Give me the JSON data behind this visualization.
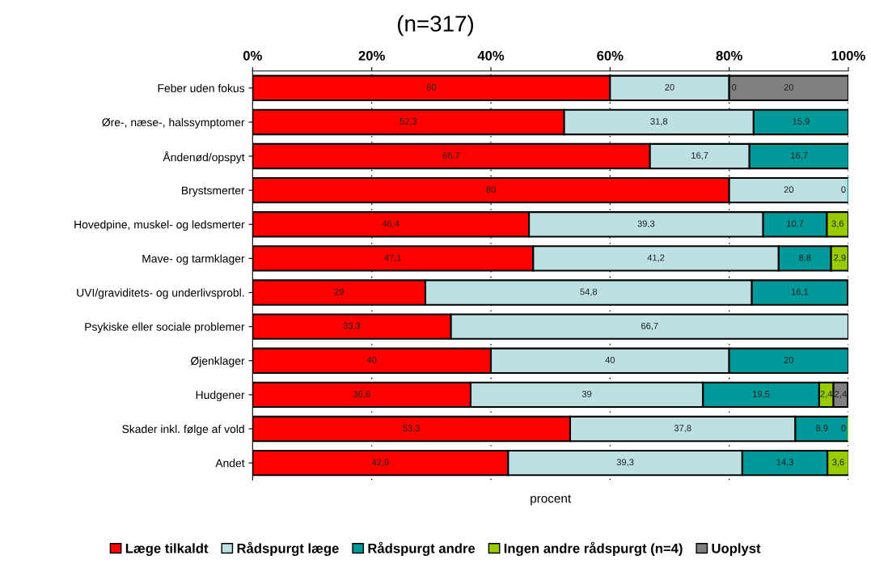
{
  "chart_data": {
    "type": "bar",
    "orientation": "horizontal",
    "stacked": true,
    "title": "(n=317)",
    "xlabel": "procent",
    "categories": [
      "Feber uden fokus",
      "Øre-, næse-, halssymptomer",
      "Åndenød/opspyt",
      "Brystsmerter",
      "Hovedpine, muskel- og ledsmerter",
      "Mave- og tarmklager",
      "UVI/graviditets- og underlivsprobl.",
      "Psykiske eller sociale problemer",
      "Øjenklager",
      "Hudgener",
      "Skader inkl. følge af vold",
      "Andet"
    ],
    "series": [
      {
        "name": "Læge tilkaldt",
        "color": "#ff0000",
        "values": [
          60,
          52.3,
          66.7,
          80,
          46.4,
          47.1,
          29,
          33.3,
          40,
          36.6,
          53.3,
          42.9
        ],
        "value_labels": [
          "60",
          "52,3",
          "66,7",
          "80",
          "46,4",
          "47,1",
          "29",
          "33,3",
          "40",
          "36,6",
          "53,3",
          "42,9"
        ]
      },
      {
        "name": "Rådspurgt læge",
        "color": "#bde0e3",
        "values": [
          20,
          31.8,
          16.7,
          20,
          39.3,
          41.2,
          54.8,
          66.7,
          40,
          39,
          37.8,
          39.3
        ],
        "value_labels": [
          "20",
          "31,8",
          "16,7",
          "20",
          "39,3",
          "41,2",
          "54,8",
          "66,7",
          "40",
          "39",
          "37,8",
          "39,3"
        ]
      },
      {
        "name": "Rådspurgt andre",
        "color": "#009999",
        "values": [
          0,
          15.9,
          16.7,
          0,
          10.7,
          8.8,
          16.1,
          null,
          20,
          19.5,
          8.9,
          14.3
        ],
        "value_labels": [
          "0",
          "15,9",
          "16,7",
          "0",
          "10,7",
          "8,8",
          "16,1",
          null,
          "20",
          "19,5",
          "8,9",
          "14,3"
        ]
      },
      {
        "name": "Ingen andre rådspurgt (n=4)",
        "color": "#99cc00",
        "values": [
          null,
          null,
          null,
          null,
          3.6,
          2.9,
          null,
          null,
          null,
          2.4,
          0,
          3.6
        ],
        "value_labels": [
          null,
          null,
          null,
          null,
          "3,6",
          "2,9",
          null,
          null,
          null,
          "2,4",
          "0",
          "3,6"
        ]
      },
      {
        "name": "Uoplyst",
        "color": "#808080",
        "values": [
          20,
          null,
          null,
          null,
          null,
          null,
          null,
          null,
          null,
          2.4,
          null,
          null
        ],
        "value_labels": [
          "20",
          null,
          null,
          null,
          null,
          null,
          null,
          null,
          null,
          "2,4",
          null,
          null
        ]
      }
    ],
    "xlim": [
      0,
      100
    ],
    "xticks": [
      {
        "value": 0,
        "label": "0%"
      },
      {
        "value": 20,
        "label": "20%"
      },
      {
        "value": 40,
        "label": "40%"
      },
      {
        "value": 60,
        "label": "60%"
      },
      {
        "value": 80,
        "label": "80%"
      },
      {
        "value": 100,
        "label": "100%"
      }
    ],
    "grid": "x",
    "legend": "bottom"
  }
}
